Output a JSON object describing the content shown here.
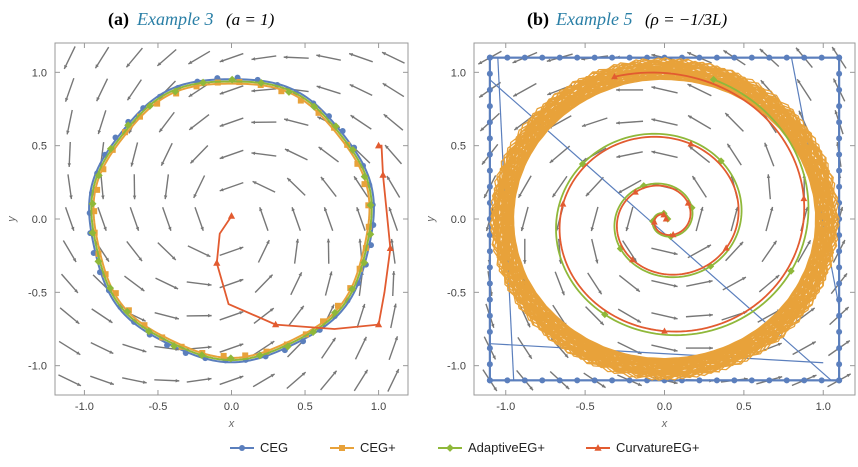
{
  "chart_data": [
    {
      "type": "line",
      "panel_label": "(a)",
      "title_link": "Example 3",
      "title_param": "(a = 1)",
      "xlabel": "x",
      "ylabel": "y",
      "xlim": [
        -1.2,
        1.2
      ],
      "ylim": [
        -1.2,
        1.2
      ],
      "xticks": [
        "-1.0",
        "-0.5",
        "0.0",
        "0.5",
        "1.0"
      ],
      "yticks": [
        "1.0",
        "0.5",
        "0.0",
        "-0.5",
        "-1.0"
      ],
      "xtick_values": [
        -1.0,
        -0.5,
        0.0,
        0.5,
        1.0
      ],
      "ytick_values": [
        1.0,
        0.5,
        0.0,
        -0.5,
        -1.0
      ],
      "field": "spiral_in",
      "series": [
        {
          "name": "CEG",
          "pattern": "circle",
          "radius": 0.965,
          "points": 44
        },
        {
          "name": "CEG+",
          "pattern": "circle",
          "radius": 0.935,
          "points": 40
        },
        {
          "name": "AdaptiveEG+",
          "pattern": "circle",
          "radius": 0.95,
          "points": 30
        },
        {
          "name": "CurvatureEG+",
          "pattern": "polyline",
          "points": [
            [
              0.0,
              0.02
            ],
            [
              -0.08,
              -0.1
            ],
            [
              -0.1,
              -0.3
            ],
            [
              -0.02,
              -0.58
            ],
            [
              0.3,
              -0.72
            ],
            [
              0.7,
              -0.75
            ],
            [
              1.0,
              -0.72
            ],
            [
              1.04,
              -0.5
            ],
            [
              1.08,
              -0.2
            ],
            [
              1.05,
              0.1
            ],
            [
              1.03,
              0.3
            ],
            [
              1.02,
              0.5
            ],
            [
              1.0,
              0.5
            ]
          ]
        }
      ]
    },
    {
      "type": "line",
      "panel_label": "(b)",
      "title_link": "Example 5",
      "title_param": "(ρ = −1/3L)",
      "xlabel": "x",
      "ylabel": "y",
      "xlim": [
        -1.2,
        1.2
      ],
      "ylim": [
        -1.2,
        1.2
      ],
      "xticks": [
        "-1.0",
        "-0.5",
        "0.0",
        "0.5",
        "1.0"
      ],
      "yticks": [
        "1.0",
        "0.5",
        "0.0",
        "-0.5",
        "-1.0"
      ],
      "xtick_values": [
        -1.0,
        -0.5,
        0.0,
        0.5,
        1.0
      ],
      "ytick_values": [
        1.0,
        0.5,
        0.0,
        -0.5,
        -1.0
      ],
      "field": "spiral_out",
      "series": [
        {
          "name": "CEG",
          "pattern": "square",
          "half_width": 1.1
        },
        {
          "name": "CEG+",
          "pattern": "band",
          "inner": 0.95,
          "outer": 1.1
        },
        {
          "name": "AdaptiveEG+",
          "pattern": "spiral",
          "r_start": 0.02,
          "r_end": 1.0,
          "turns": 3.2
        },
        {
          "name": "CurvatureEG+",
          "pattern": "spiral",
          "r_start": 0.01,
          "r_end": 1.02,
          "turns": 3.3
        }
      ]
    }
  ],
  "legend": {
    "items": [
      {
        "label": "CEG",
        "color": "#5b7fbd",
        "marker": "circle"
      },
      {
        "label": "CEG+",
        "color": "#e8a23a",
        "marker": "square"
      },
      {
        "label": "AdaptiveEG+",
        "color": "#8fb83a",
        "marker": "diamond"
      },
      {
        "label": "CurvatureEG+",
        "color": "#e25b30",
        "marker": "triangle"
      }
    ]
  },
  "colors": {
    "field_arrows": "#777777",
    "frame": "#999999"
  }
}
